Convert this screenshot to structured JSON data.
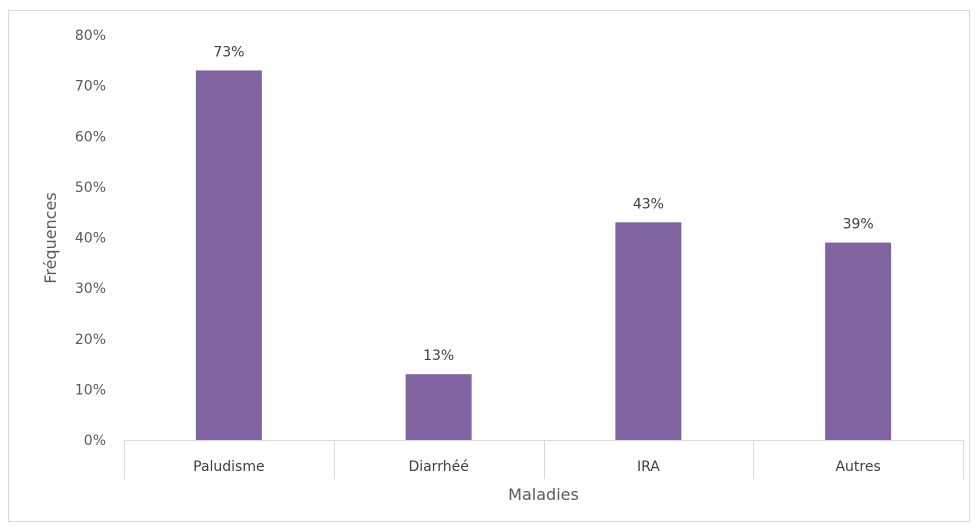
{
  "chart_data": {
    "type": "bar",
    "categories": [
      "Paludisme",
      "Diarrhéé",
      "IRA",
      "Autres"
    ],
    "values": [
      73,
      13,
      43,
      39
    ],
    "data_labels": [
      "73%",
      "13%",
      "43%",
      "39%"
    ],
    "xlabel": "Maladies",
    "ylabel": "Fréquences",
    "ylim": [
      0,
      80
    ],
    "y_ticks": [
      0,
      10,
      20,
      30,
      40,
      50,
      60,
      70,
      80
    ],
    "y_tick_labels": [
      "0%",
      "10%",
      "20%",
      "30%",
      "40%",
      "50%",
      "60%",
      "70%",
      "80%"
    ],
    "grid": false,
    "legend": "none",
    "colors": {
      "bar": "#8064a2",
      "axis": "#d9d9d9",
      "text": "#595959"
    }
  }
}
